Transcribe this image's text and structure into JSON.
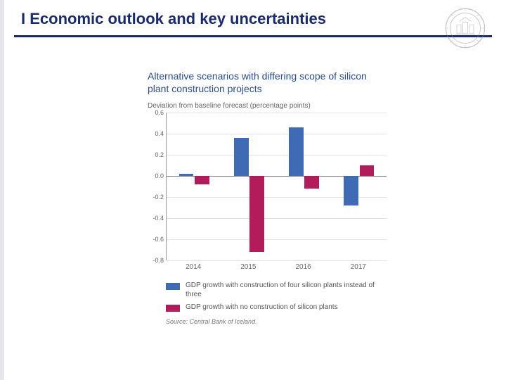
{
  "header": {
    "title": "I Economic outlook and key uncertainties",
    "title_color": "#1a2b6d",
    "title_fontsize": 22,
    "rule_color": "#1a2b6d"
  },
  "logo": {
    "name": "sedlabanki-islands-seal",
    "stroke": "#8a8a8a"
  },
  "chart": {
    "type": "bar",
    "title": "Alternative scenarios with differing scope of silicon plant construction projects",
    "title_color": "#2a4f8f",
    "title_fontsize": 14,
    "subtitle": "Deviation from baseline forecast (percentage points)",
    "subtitle_color": "#666666",
    "subtitle_fontsize": 10,
    "background_color": "#ffffff",
    "grid_color": "#e4e4e4",
    "axis_color": "#999999",
    "zero_line_color": "#888888",
    "tick_label_color": "#666666",
    "tick_fontsize": 9,
    "xlabel_fontsize": 10,
    "ylim": [
      -0.8,
      0.6
    ],
    "ytick_step": 0.2,
    "yticks": [
      0.6,
      0.4,
      0.2,
      0.0,
      -0.2,
      -0.4,
      -0.6,
      -0.8
    ],
    "categories": [
      "2014",
      "2015",
      "2016",
      "2017"
    ],
    "bar_group_width": 0.55,
    "bar_gap": 0.02,
    "series": [
      {
        "key": "four_plants",
        "label": "GDP growth with construction of four silicon plants instead of three",
        "color": "#3e6bb3",
        "values": [
          0.02,
          0.36,
          0.46,
          -0.28
        ]
      },
      {
        "key": "no_plants",
        "label": "GDP growth with no construction of silicon plants",
        "color": "#b31c5b",
        "values": [
          -0.08,
          -0.72,
          -0.12,
          0.1
        ]
      }
    ],
    "source": "Source: Central Bank of Iceland."
  }
}
